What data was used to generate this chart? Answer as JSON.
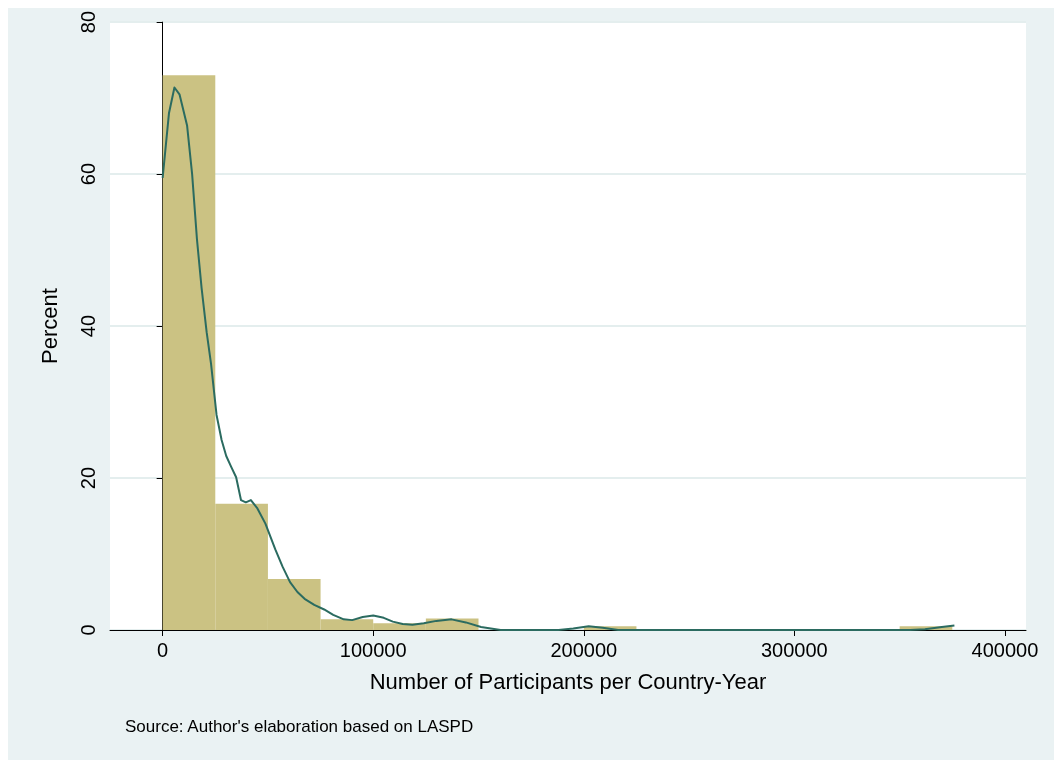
{
  "chart_data": {
    "type": "histogram",
    "xlabel": "Number of Participants per Country-Year",
    "ylabel": "Percent",
    "bins": [
      0,
      25000,
      50000,
      75000,
      100000,
      125000,
      150000,
      175000,
      200000,
      225000,
      250000,
      275000,
      300000,
      325000,
      350000,
      375000
    ],
    "values": [
      73,
      16.6,
      6.7,
      1.4,
      0.9,
      1.5,
      0,
      0,
      0.5,
      0,
      0,
      0,
      0,
      0,
      0.5
    ],
    "color": "#cbc283",
    "series": [
      {
        "type": "line",
        "color": "#2b6b60",
        "x": [
          0,
          3000,
          5600,
          8000,
          11600,
          14000,
          16300,
          18500,
          20900,
          23000,
          25600,
          28000,
          30200,
          32500,
          34900,
          37200,
          39500,
          41900,
          45000,
          48800,
          53500,
          57000,
          60500,
          64000,
          67400,
          72000,
          76700,
          81000,
          86000,
          90000,
          95000,
          100000,
          105000,
          109300,
          114000,
          118600,
          124000,
          130000,
          137200,
          144000,
          151200,
          160500,
          175000,
          188000,
          195000,
          202300,
          209000,
          216300,
          250000,
          300000,
          346500,
          355000,
          362000,
          370000,
          376000
        ],
        "values": [
          59.5,
          68,
          71.4,
          70.5,
          66.4,
          60,
          51.4,
          45,
          39.2,
          35,
          28.3,
          25,
          22.9,
          21.5,
          20.1,
          17.1,
          16.8,
          17.1,
          16,
          14,
          10.6,
          8.3,
          6.3,
          5,
          4.1,
          3.3,
          2.7,
          2,
          1.4,
          1.3,
          1.7,
          1.9,
          1.6,
          1.1,
          0.8,
          0.7,
          0.9,
          1.2,
          1.4,
          1,
          0.4,
          0,
          0,
          0,
          0.2,
          0.5,
          0.3,
          0,
          0,
          0,
          0,
          0,
          0.1,
          0.4,
          0.6
        ]
      }
    ],
    "xlim": [
      -25000,
      410000
    ],
    "xticks": [
      0,
      100000,
      200000,
      300000,
      400000
    ],
    "ylim": [
      0,
      80
    ],
    "yticks": [
      0,
      20,
      40,
      60,
      80
    ],
    "grid": "y",
    "annotations": [
      "Source: Author's elaboration based on LASPD"
    ]
  }
}
